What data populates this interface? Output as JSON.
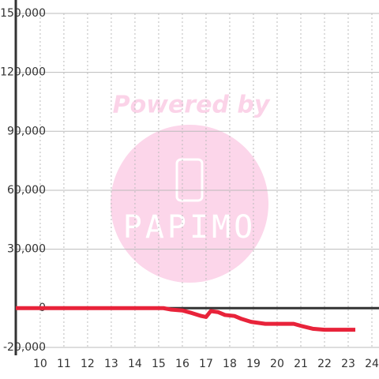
{
  "chart_data": {
    "type": "line",
    "watermark": {
      "top": "Powered by",
      "logo": "PAPIMO"
    },
    "x": [
      8.97,
      15.2,
      15.5,
      16,
      16.4,
      16.8,
      17.0,
      17.2,
      17.5,
      17.8,
      18.2,
      18.5,
      18.9,
      19.5,
      20,
      20.7,
      21,
      21.5,
      22,
      23.3
    ],
    "series": [
      {
        "color": "#e8233a",
        "values": [
          0,
          0,
          -700,
          -1200,
          -2500,
          -4000,
          -4500,
          -1500,
          -2000,
          -3500,
          -4000,
          -5500,
          -7000,
          -8000,
          -8000,
          -8000,
          -9000,
          -10500,
          -11000,
          -11000
        ]
      }
    ],
    "xlim": [
      8.97,
      24.3
    ],
    "xticks": [
      10,
      11,
      12,
      13,
      14,
      15,
      16,
      17,
      18,
      19,
      20,
      21,
      22,
      23,
      24
    ],
    "ylim": [
      -20000,
      150000
    ],
    "yticks": [
      {
        "value": -20000,
        "label": "-20,000"
      },
      0,
      {
        "value": 30000,
        "label": "30,000"
      },
      {
        "value": 60000,
        "label": "60,000"
      },
      {
        "value": 90000,
        "label": "90,000"
      },
      {
        "value": 120000,
        "label": "120,000"
      },
      {
        "value": 150000,
        "label": "150,000"
      }
    ],
    "grid": true
  }
}
